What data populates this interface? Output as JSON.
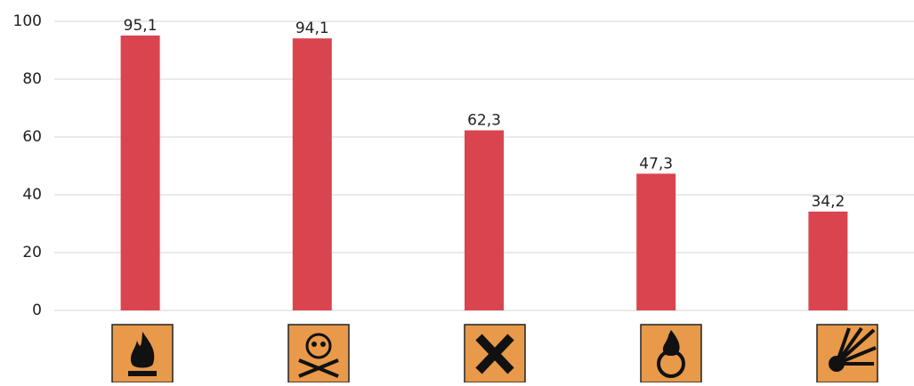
{
  "chart_data": {
    "type": "bar",
    "categories": [
      null,
      null,
      null,
      null,
      null
    ],
    "values": [
      95.1,
      94.1,
      62.3,
      47.3,
      34.2
    ],
    "value_labels": [
      "95,1",
      "94,1",
      "62,3",
      "47,3",
      "34,2"
    ],
    "color": "#d9444f",
    "ylim": [
      0,
      100
    ],
    "yticks": [
      0,
      20,
      40,
      60,
      80,
      100
    ],
    "grid": true
  }
}
